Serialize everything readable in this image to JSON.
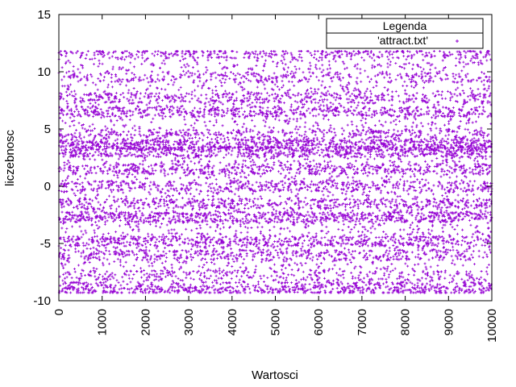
{
  "chart_data": {
    "type": "scatter",
    "title": "",
    "xlabel": "Wartosci",
    "ylabel": "liczebnosc",
    "xlim": [
      0,
      10000
    ],
    "ylim": [
      -10,
      15
    ],
    "x_ticks": [
      "0",
      "1000",
      "2000",
      "3000",
      "4000",
      "5000",
      "6000",
      "7000",
      "8000",
      "9000",
      "10000"
    ],
    "y_ticks": [
      "-10",
      "-5",
      "0",
      "5",
      "10",
      "15"
    ],
    "grid": false,
    "legend": {
      "title": "Legenda",
      "placement": "top-right",
      "entries": [
        {
          "name": "'attract.txt'",
          "color": "#9400d3",
          "marker": "+"
        }
      ]
    },
    "series": [
      {
        "name": "'attract.txt'",
        "color": "#9400d3",
        "marker": "+",
        "point_count": 10000,
        "y_range": [
          -9.3,
          11.8
        ],
        "dense_bands": [
          {
            "y": 11.6,
            "density": 0.45
          },
          {
            "y": 9.5,
            "density": 0.35
          },
          {
            "y": 7.7,
            "density": 0.55
          },
          {
            "y": 6.5,
            "density": 0.7
          },
          {
            "y": 4.5,
            "density": 0.5
          },
          {
            "y": 3.6,
            "density": 1.0
          },
          {
            "y": 3.0,
            "density": 0.9
          },
          {
            "y": 1.5,
            "density": 0.6
          },
          {
            "y": 0.0,
            "density": 0.55
          },
          {
            "y": -1.5,
            "density": 0.6
          },
          {
            "y": -2.7,
            "density": 1.0
          },
          {
            "y": -4.8,
            "density": 0.75
          },
          {
            "y": -6.0,
            "density": 0.45
          },
          {
            "y": -7.8,
            "density": 0.35
          },
          {
            "y": -8.8,
            "density": 0.6
          },
          {
            "y": -9.2,
            "density": 0.5
          }
        ]
      }
    ]
  }
}
